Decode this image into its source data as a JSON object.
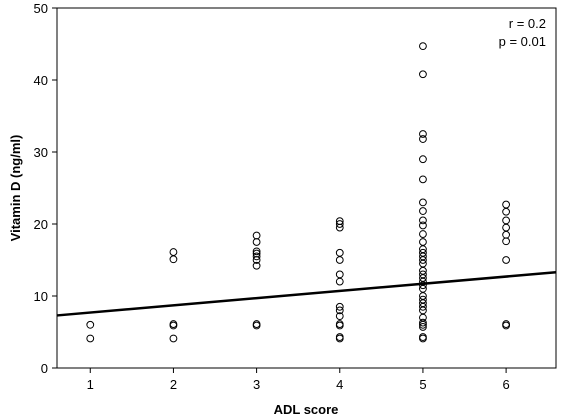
{
  "chart_data": {
    "type": "scatter",
    "title": "",
    "xlabel": "ADL score",
    "ylabel": "Vitamin D (ng/ml)",
    "xlim": [
      0.6,
      6.6
    ],
    "ylim": [
      0,
      50
    ],
    "x_ticks": [
      1,
      2,
      3,
      4,
      5,
      6
    ],
    "y_ticks": [
      0,
      10,
      20,
      30,
      40,
      50
    ],
    "grid": false,
    "legend": "none",
    "annotations": [
      "r = 0.2",
      "p = 0.01"
    ],
    "series": [
      {
        "marker": "open-circle",
        "color": "#000000",
        "points": [
          [
            1,
            6.0
          ],
          [
            1,
            4.1
          ],
          [
            2,
            16.1
          ],
          [
            2,
            15.1
          ],
          [
            2,
            6.1
          ],
          [
            2,
            5.9
          ],
          [
            2,
            4.1
          ],
          [
            3,
            18.4
          ],
          [
            3,
            17.5
          ],
          [
            3,
            16.2
          ],
          [
            3,
            15.9
          ],
          [
            3,
            15.5
          ],
          [
            3,
            15.0
          ],
          [
            3,
            14.2
          ],
          [
            3,
            6.1
          ],
          [
            3,
            5.9
          ],
          [
            4,
            20.4
          ],
          [
            4,
            20.0
          ],
          [
            4,
            19.5
          ],
          [
            4,
            16.0
          ],
          [
            4,
            15.0
          ],
          [
            4,
            13.0
          ],
          [
            4,
            12.0
          ],
          [
            4,
            8.5
          ],
          [
            4,
            8.0
          ],
          [
            4,
            7.2
          ],
          [
            4,
            6.1
          ],
          [
            4,
            5.9
          ],
          [
            4,
            4.3
          ],
          [
            4,
            4.1
          ],
          [
            5,
            44.7
          ],
          [
            5,
            40.8
          ],
          [
            5,
            32.5
          ],
          [
            5,
            31.8
          ],
          [
            5,
            29.0
          ],
          [
            5,
            26.2
          ],
          [
            5,
            23.0
          ],
          [
            5,
            21.8
          ],
          [
            5,
            20.5
          ],
          [
            5,
            19.8
          ],
          [
            5,
            18.6
          ],
          [
            5,
            17.5
          ],
          [
            5,
            16.5
          ],
          [
            5,
            16.0
          ],
          [
            5,
            15.5
          ],
          [
            5,
            15.0
          ],
          [
            5,
            14.5
          ],
          [
            5,
            13.5
          ],
          [
            5,
            13.0
          ],
          [
            5,
            12.5
          ],
          [
            5,
            12.0
          ],
          [
            5,
            11.5
          ],
          [
            5,
            11.0
          ],
          [
            5,
            10.0
          ],
          [
            5,
            9.5
          ],
          [
            5,
            9.0
          ],
          [
            5,
            8.5
          ],
          [
            5,
            8.0
          ],
          [
            5,
            7.0
          ],
          [
            5,
            6.3
          ],
          [
            5,
            6.0
          ],
          [
            5,
            5.7
          ],
          [
            5,
            4.3
          ],
          [
            5,
            4.1
          ],
          [
            6,
            22.7
          ],
          [
            6,
            21.7
          ],
          [
            6,
            20.5
          ],
          [
            6,
            19.5
          ],
          [
            6,
            18.5
          ],
          [
            6,
            17.6
          ],
          [
            6,
            15.0
          ],
          [
            6,
            6.1
          ],
          [
            6,
            5.9
          ]
        ]
      }
    ],
    "fit_line": {
      "x": [
        0.6,
        6.6
      ],
      "y": [
        7.3,
        13.3
      ],
      "color": "#000000"
    }
  }
}
